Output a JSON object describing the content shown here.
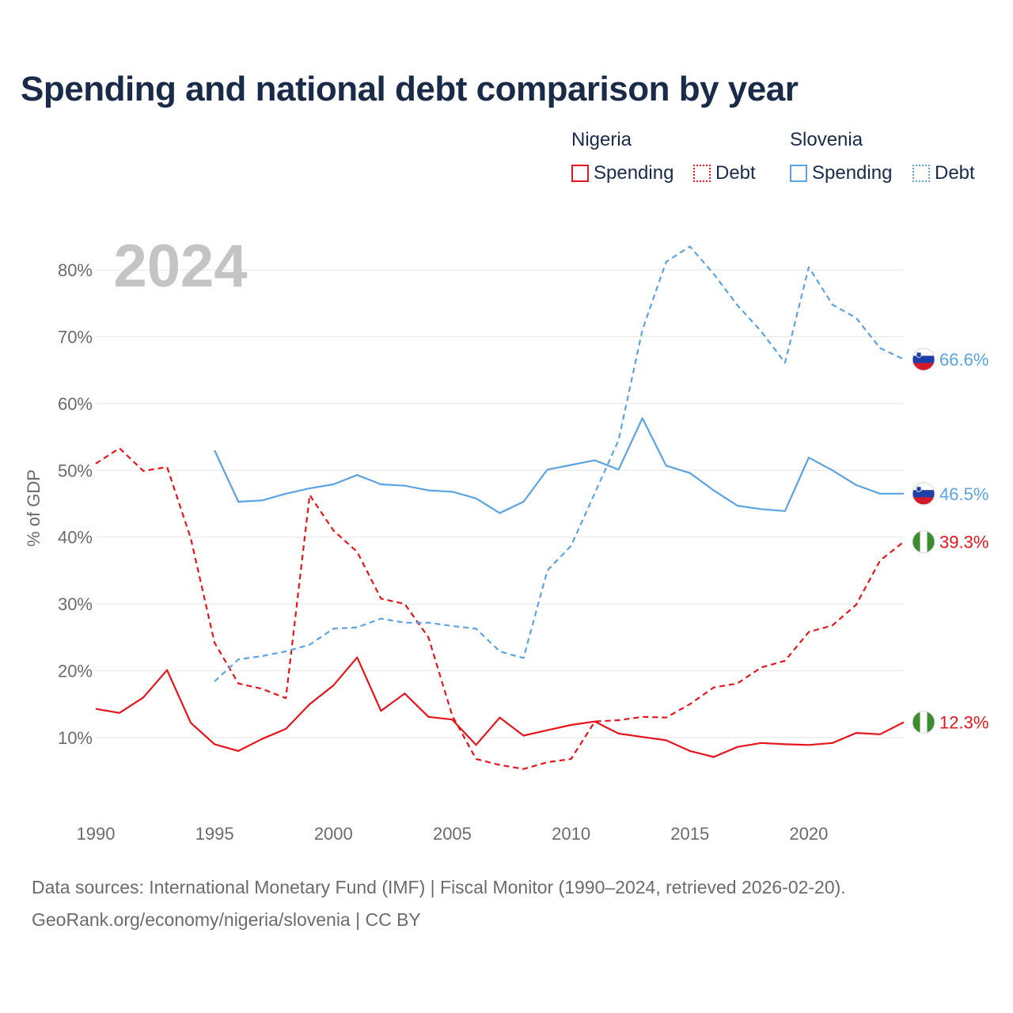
{
  "title": "Spending and national debt comparison by year",
  "year_watermark": "2024",
  "legend": {
    "nigeria": {
      "country": "Nigeria",
      "spending": "Spending",
      "debt": "Debt",
      "color": "#e8141b"
    },
    "slovenia": {
      "country": "Slovenia",
      "spending": "Spending",
      "debt": "Debt",
      "color": "#5ba3e3"
    }
  },
  "footer": {
    "line1": "Data sources: International Monetary Fund (IMF) | Fiscal Monitor (1990–2024, retrieved 2026-02-20).",
    "line2": "GeoRank.org/economy/nigeria/slovenia | CC BY"
  },
  "chart_data": {
    "type": "line",
    "title": "Spending and national debt comparison by year",
    "ylabel": "% of GDP",
    "xlabel": "",
    "xlim": [
      1990,
      2024
    ],
    "ylim": [
      0,
      85
    ],
    "xticks": [
      1990,
      1995,
      2000,
      2005,
      2010,
      2015,
      2020
    ],
    "xtick_labels": [
      "1990",
      "1995",
      "2000",
      "2005",
      "2010",
      "2015",
      "2020"
    ],
    "yticks": [
      10,
      20,
      30,
      40,
      50,
      60,
      70,
      80
    ],
    "ytick_labels": [
      "10%",
      "20%",
      "30%",
      "40%",
      "50%",
      "60%",
      "70%",
      "80%"
    ],
    "grid": true,
    "legend_position": "top-right",
    "series": [
      {
        "name": "Nigeria Spending",
        "country": "Nigeria",
        "style": "solid",
        "color": "#e8141b",
        "x": [
          1990,
          1991,
          1992,
          1993,
          1994,
          1995,
          1996,
          1997,
          1998,
          1999,
          2000,
          2001,
          2002,
          2003,
          2004,
          2005,
          2006,
          2007,
          2008,
          2009,
          2010,
          2011,
          2012,
          2013,
          2014,
          2015,
          2016,
          2017,
          2018,
          2019,
          2020,
          2021,
          2022,
          2023,
          2024
        ],
        "values": [
          14.3,
          13.7,
          16.0,
          20.1,
          12.2,
          9.0,
          8.0,
          9.8,
          11.3,
          15.0,
          17.8,
          22.0,
          14.0,
          16.6,
          13.1,
          12.7,
          8.9,
          13.0,
          10.3,
          11.1,
          11.9,
          12.4,
          10.6,
          10.1,
          9.6,
          8.0,
          7.1,
          8.6,
          9.2,
          9.0,
          8.9,
          9.2,
          10.7,
          10.5,
          12.3
        ],
        "end_label": "12.3%"
      },
      {
        "name": "Nigeria Debt",
        "country": "Nigeria",
        "style": "dashed",
        "color": "#e8141b",
        "x": [
          1990,
          1991,
          1992,
          1993,
          1994,
          1995,
          1996,
          1997,
          1998,
          1999,
          2000,
          2001,
          2002,
          2003,
          2004,
          2005,
          2006,
          2007,
          2008,
          2009,
          2010,
          2011,
          2012,
          2013,
          2014,
          2015,
          2016,
          2017,
          2018,
          2019,
          2020,
          2021,
          2022,
          2023,
          2024
        ],
        "values": [
          51.0,
          53.3,
          49.9,
          50.5,
          39.8,
          24.2,
          18.1,
          17.3,
          15.9,
          46.3,
          41.0,
          37.8,
          30.8,
          30.0,
          25.0,
          13.3,
          6.8,
          5.9,
          5.3,
          6.3,
          6.8,
          12.4,
          12.6,
          13.1,
          13.0,
          15.0,
          17.5,
          18.1,
          20.5,
          21.5,
          25.8,
          26.8,
          29.9,
          36.5,
          39.3
        ],
        "end_label": "39.3%"
      },
      {
        "name": "Slovenia Spending",
        "country": "Slovenia",
        "style": "solid",
        "color": "#5ba3e3",
        "x": [
          1995,
          1996,
          1997,
          1998,
          1999,
          2000,
          2001,
          2002,
          2003,
          2004,
          2005,
          2006,
          2007,
          2008,
          2009,
          2010,
          2011,
          2012,
          2013,
          2014,
          2015,
          2016,
          2017,
          2018,
          2019,
          2020,
          2021,
          2022,
          2023,
          2024
        ],
        "values": [
          53.0,
          45.3,
          45.5,
          46.5,
          47.3,
          47.9,
          49.3,
          47.9,
          47.7,
          47.0,
          46.8,
          45.8,
          43.6,
          45.3,
          50.1,
          50.8,
          51.5,
          50.1,
          57.8,
          50.7,
          49.6,
          47.0,
          44.7,
          44.2,
          43.9,
          51.9,
          50.0,
          47.8,
          46.5,
          46.5
        ],
        "end_label": "46.5%"
      },
      {
        "name": "Slovenia Debt",
        "country": "Slovenia",
        "style": "dashed",
        "color": "#5ba3e3",
        "x": [
          1995,
          1996,
          1997,
          1998,
          1999,
          2000,
          2001,
          2002,
          2003,
          2004,
          2005,
          2006,
          2007,
          2008,
          2009,
          2010,
          2011,
          2012,
          2013,
          2014,
          2015,
          2016,
          2017,
          2018,
          2019,
          2020,
          2021,
          2022,
          2023,
          2024
        ],
        "values": [
          18.4,
          21.7,
          22.2,
          22.9,
          23.9,
          26.3,
          26.5,
          27.8,
          27.2,
          27.2,
          26.7,
          26.3,
          22.9,
          21.9,
          35.0,
          38.7,
          46.6,
          54.5,
          71.0,
          81.2,
          83.5,
          79.4,
          74.7,
          70.8,
          66.1,
          80.4,
          74.8,
          72.8,
          68.3,
          66.6
        ],
        "end_label": "66.6%"
      }
    ]
  }
}
